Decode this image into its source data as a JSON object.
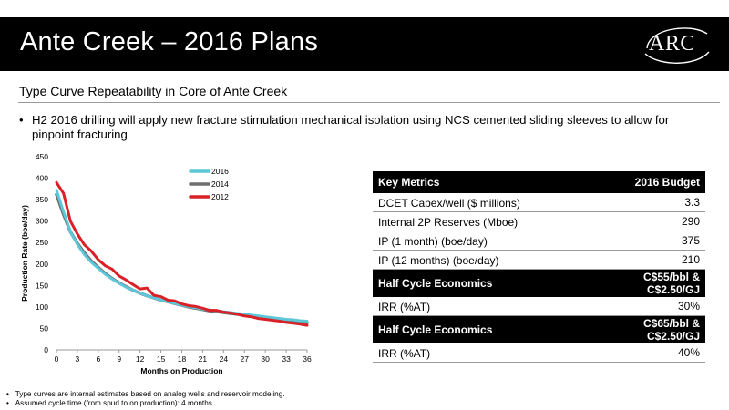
{
  "header": {
    "title": "Ante Creek – 2016 Plans",
    "logo_text": "ARC"
  },
  "subtitle": "Type Curve Repeatability in Core of Ante Creek",
  "bullet": "H2 2016 drilling will apply new fracture stimulation mechanical isolation using NCS cemented sliding sleeves to allow for pinpoint fracturing",
  "chart_data": {
    "type": "line",
    "xlabel": "Months on Production",
    "ylabel": "Production Rate (boe/day)",
    "xlim": [
      0,
      36
    ],
    "ylim": [
      0,
      450
    ],
    "x_ticks": [
      0,
      3,
      6,
      9,
      12,
      15,
      18,
      21,
      24,
      27,
      30,
      33,
      36
    ],
    "y_ticks": [
      0,
      50,
      100,
      150,
      200,
      250,
      300,
      350,
      400,
      450
    ],
    "grid": false,
    "legend_position": "top-right",
    "x": [
      0,
      1,
      2,
      3,
      4,
      5,
      6,
      7,
      8,
      9,
      10,
      11,
      12,
      13,
      14,
      15,
      16,
      17,
      18,
      19,
      20,
      21,
      22,
      23,
      24,
      25,
      26,
      27,
      28,
      29,
      30,
      31,
      32,
      33,
      34,
      35,
      36
    ],
    "series": [
      {
        "name": "2016",
        "color": "#5cc7d9",
        "values": [
          372,
          322,
          275,
          246,
          222,
          204,
          190,
          176,
          165,
          155,
          146,
          139,
          132,
          126,
          121,
          116,
          112,
          108,
          104,
          101,
          98,
          95,
          93,
          91,
          89,
          87,
          85,
          83,
          81,
          79,
          77,
          75,
          73,
          71,
          70,
          68,
          67
        ]
      },
      {
        "name": "2014",
        "color": "#6e6e6e",
        "values": [
          362,
          316,
          275,
          248,
          226,
          207,
          192,
          178,
          166,
          156,
          147,
          139,
          132,
          126,
          121,
          116,
          112,
          108,
          104,
          100,
          97,
          94,
          91,
          89,
          87,
          85,
          83,
          81,
          79,
          77,
          75,
          73,
          71,
          69,
          67,
          65,
          63
        ]
      },
      {
        "name": "2012",
        "color": "#d92127",
        "values": [
          390,
          365,
          300,
          270,
          245,
          230,
          210,
          196,
          188,
          172,
          163,
          152,
          142,
          144,
          127,
          124,
          116,
          114,
          107,
          103,
          101,
          97,
          92,
          92,
          88,
          86,
          83,
          79,
          77,
          73,
          71,
          69,
          67,
          64,
          62,
          60,
          57
        ]
      }
    ]
  },
  "table": {
    "header": {
      "label": "Key Metrics",
      "value": "2016 Budget"
    },
    "rows": [
      {
        "label": "DCET Capex/well ($ millions)",
        "value": "3.3"
      },
      {
        "label": "Internal 2P Reserves (Mboe)",
        "value": "290"
      },
      {
        "label": "IP (1 month) (boe/day)",
        "value": "375"
      },
      {
        "label": "IP (12 months) (boe/day)",
        "value": "210"
      }
    ],
    "half_cycle_1": {
      "label": "Half Cycle Economics",
      "value_line1": "C$55/bbl &",
      "value_line2": "C$2.50/GJ"
    },
    "irr_1": {
      "label": "IRR (%AT)",
      "value": "30%"
    },
    "half_cycle_2": {
      "label": "Half Cycle Economics",
      "value_line1": "C$65/bbl &",
      "value_line2": "C$2.50/GJ"
    },
    "irr_2": {
      "label": "IRR (%AT)",
      "value": "40%"
    }
  },
  "footnotes": [
    "Type curves are internal estimates based on analog wells and reservoir modeling.",
    "Assumed cycle time (from spud to on production): 4 months."
  ]
}
